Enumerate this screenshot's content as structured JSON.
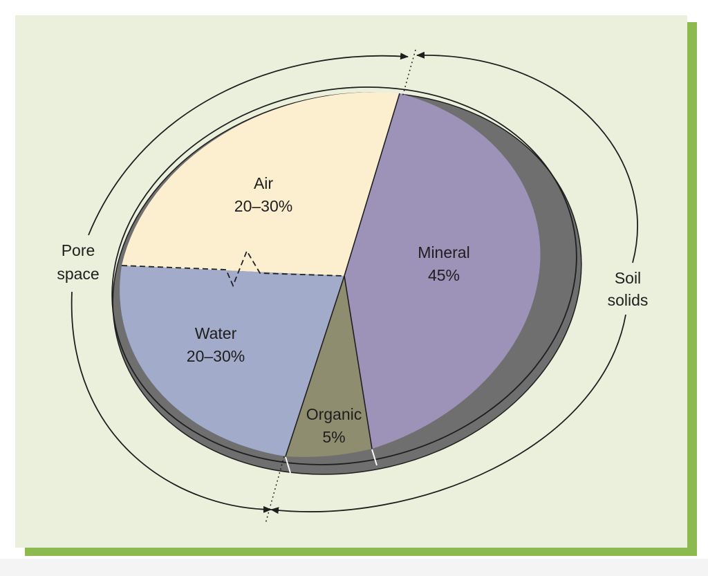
{
  "colors": {
    "panel_background": "#ebf0dd",
    "panel_shadow": "#8dba4e",
    "air": "#fcefd0",
    "water": "#a2abca",
    "organic": "#8f8d6f",
    "mineral": "#9d92b8",
    "disk_side": "#6f6f6f",
    "outline": "#1e1e1e"
  },
  "labels": {
    "air": {
      "name": "Air",
      "value": "20–30%"
    },
    "water": {
      "name": "Water",
      "value": "20–30%"
    },
    "organic": {
      "name": "Organic",
      "value": "5%"
    },
    "mineral": {
      "name": "Mineral",
      "value": "45%"
    },
    "pore_space": {
      "line1": "Pore",
      "line2": "space"
    },
    "soil_solids": {
      "line1": "Soil",
      "line2": "solids"
    }
  }
}
